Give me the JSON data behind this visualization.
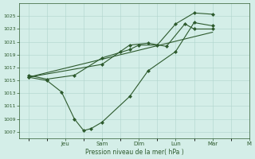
{
  "bg_color": "#d4eee8",
  "grid_color": "#b0d4cc",
  "line_color": "#2d5a2d",
  "marker_color": "#2d5a2d",
  "xlabel": "Pression niveau de la mer( hPa )",
  "ylim": [
    1006,
    1027
  ],
  "yticks": [
    1007,
    1009,
    1011,
    1013,
    1015,
    1017,
    1019,
    1021,
    1023,
    1025
  ],
  "xlim": [
    -0.5,
    11.5
  ],
  "xtick_positions": [
    2,
    4,
    6,
    8,
    10,
    12
  ],
  "xtick_labels": [
    "Jeu",
    "Sam",
    "Dim",
    "Lun",
    "Mar",
    "M"
  ],
  "series1_x": [
    0,
    1.0,
    1.8,
    2.5,
    3.0,
    3.4,
    4.0,
    5.5,
    6.5,
    8.0,
    9.0,
    10.0
  ],
  "series1_y": [
    1015.5,
    1015.0,
    1013.2,
    1009.0,
    1007.2,
    1007.5,
    1008.5,
    1012.5,
    1016.5,
    1019.5,
    1024.0,
    1023.5
  ],
  "series2_x": [
    0,
    1.0,
    2.5,
    4.0,
    5.5,
    6.0,
    7.0,
    8.0,
    9.0,
    10.0
  ],
  "series2_y": [
    1015.8,
    1015.2,
    1015.8,
    1018.5,
    1019.8,
    1020.5,
    1020.5,
    1023.8,
    1025.5,
    1025.3
  ],
  "series3_x": [
    0,
    4.0,
    5.0,
    5.5,
    6.5,
    7.5,
    8.5,
    9.0,
    10.0
  ],
  "series3_y": [
    1015.5,
    1017.5,
    1019.5,
    1020.5,
    1020.8,
    1020.3,
    1023.8,
    1023.0,
    1023.0
  ],
  "trend_x": [
    0,
    10.0
  ],
  "trend_y": [
    1015.5,
    1022.5
  ]
}
